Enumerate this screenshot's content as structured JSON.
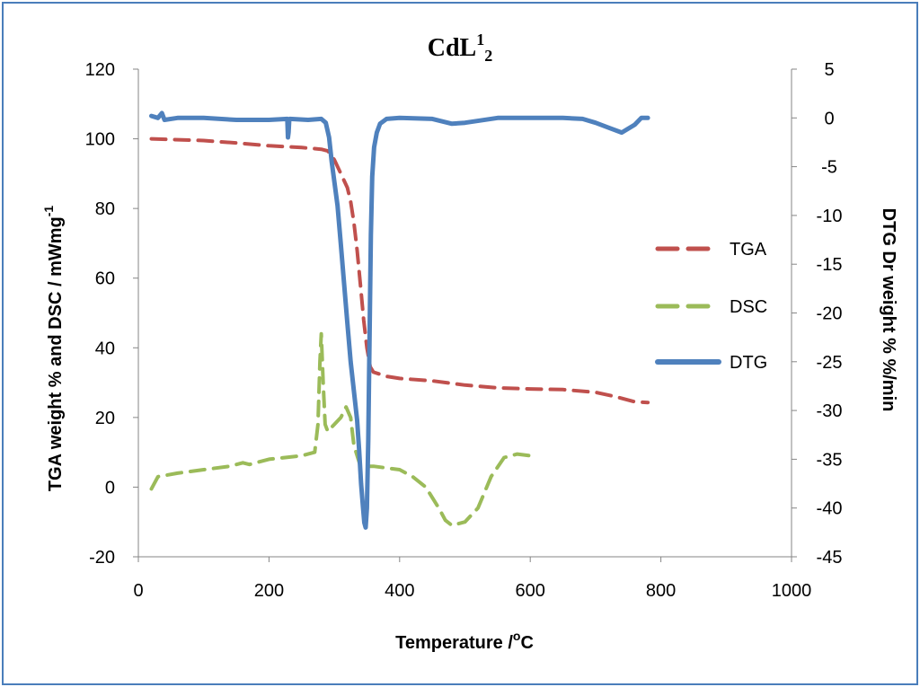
{
  "chart_data": {
    "type": "line",
    "title": {
      "main": "CdL",
      "sup": "1",
      "sub": "2"
    },
    "xlabel": {
      "main": "Temperature /",
      "sup": "o",
      "tail": "C"
    },
    "ylabel_left": {
      "main": "TGA weight %  and  DSC / mWmg",
      "sup": "-1"
    },
    "ylabel_right": "DTG Dr weight % %/min",
    "xlim": [
      0,
      1000
    ],
    "ylim_left": [
      -20,
      120
    ],
    "ylim_right": [
      -45,
      5
    ],
    "x_ticks": [
      "0",
      "200",
      "400",
      "600",
      "800",
      "1000"
    ],
    "y_left_ticks": [
      "-20",
      "0",
      "20",
      "40",
      "60",
      "80",
      "100",
      "120"
    ],
    "y_right_ticks": [
      "-45",
      "-40",
      "-35",
      "-30",
      "-25",
      "-20",
      "-15",
      "-10",
      "-5",
      "0",
      "5"
    ],
    "legend_position": "right",
    "series": [
      {
        "name": "TGA",
        "axis": "left",
        "color": "#c0504d",
        "style": "dashed",
        "x": [
          20,
          100,
          150,
          200,
          250,
          280,
          290,
          300,
          310,
          320,
          325,
          330,
          335,
          340,
          345,
          350,
          355,
          360,
          380,
          400,
          450,
          500,
          550,
          600,
          650,
          700,
          730,
          760,
          780
        ],
        "y": [
          100,
          99.5,
          98.8,
          98,
          97.5,
          97,
          96.5,
          94,
          90,
          86,
          82,
          76,
          68,
          58,
          48,
          40,
          34.5,
          33,
          31.8,
          31.2,
          30.5,
          29.3,
          28.5,
          28.2,
          28,
          27.2,
          26,
          24.5,
          24.3
        ]
      },
      {
        "name": "DSC",
        "axis": "left",
        "color": "#9bbb59",
        "style": "dashed",
        "x": [
          20,
          30,
          60,
          100,
          140,
          160,
          170,
          200,
          250,
          270,
          275,
          278,
          280,
          283,
          286,
          290,
          300,
          310,
          318,
          325,
          330,
          340,
          360,
          380,
          400,
          420,
          440,
          460,
          470,
          480,
          500,
          520,
          540,
          560,
          580,
          600
        ],
        "y": [
          -0.5,
          3,
          4,
          5,
          6,
          7,
          6.5,
          8,
          9,
          10,
          18,
          36,
          44,
          30,
          18,
          16,
          18,
          20,
          23,
          20,
          12,
          6,
          6,
          5.5,
          5,
          3,
          0,
          -6,
          -9.5,
          -11,
          -10,
          -6,
          3,
          8.5,
          9.5,
          9
        ]
      },
      {
        "name": "DTG",
        "axis": "right",
        "color": "#4f81bd",
        "style": "solid",
        "x": [
          20,
          30,
          36,
          40,
          60,
          100,
          150,
          200,
          228,
          229,
          230,
          231,
          232,
          260,
          280,
          287,
          292,
          296,
          300,
          305,
          310,
          315,
          320,
          325,
          330,
          335,
          338,
          341,
          344,
          346,
          348,
          350,
          352,
          354,
          356,
          358,
          361,
          365,
          370,
          380,
          400,
          450,
          480,
          500,
          550,
          600,
          650,
          680,
          700,
          720,
          740,
          760,
          770,
          780
        ],
        "y": [
          0.2,
          0,
          0.5,
          -0.2,
          0,
          0,
          -0.2,
          -0.2,
          -0.1,
          -2,
          -1.5,
          -0.3,
          -0.1,
          -0.2,
          -0.1,
          -0.5,
          -2,
          -4.5,
          -6.5,
          -9,
          -13,
          -17,
          -21,
          -25,
          -28,
          -31,
          -34,
          -37.5,
          -40,
          -41.5,
          -42,
          -40,
          -33,
          -22,
          -12,
          -6,
          -3,
          -1.5,
          -0.6,
          -0.1,
          0,
          -0.1,
          -0.6,
          -0.5,
          0,
          0,
          0,
          -0.1,
          -0.5,
          -1,
          -1.5,
          -0.7,
          0,
          0
        ]
      }
    ]
  }
}
